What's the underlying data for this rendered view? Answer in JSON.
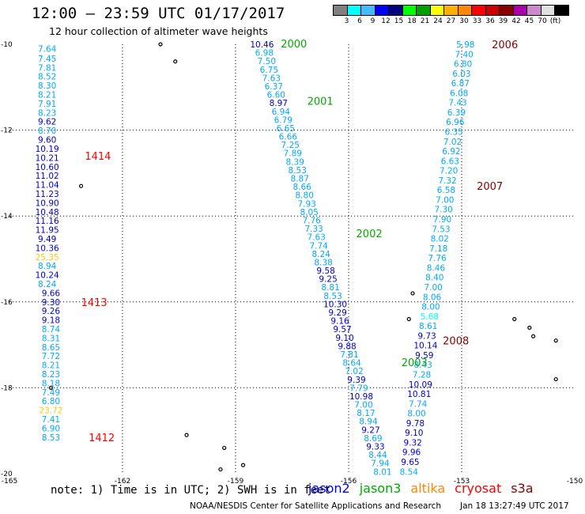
{
  "header": {
    "title": "12:00 – 23:59 UTC 01/17/2017",
    "subtitle": "12 hour collection of altimeter wave heights"
  },
  "legend": {
    "colors": [
      "#808080",
      "#00ffff",
      "#44bbff",
      "#0000ff",
      "#000080",
      "#00ff00",
      "#00a000",
      "#ffff00",
      "#ffb000",
      "#ff8800",
      "#ff0000",
      "#cc0000",
      "#880000",
      "#aa00aa",
      "#cc88cc",
      "#e0e0e0",
      "#000000"
    ],
    "labels": [
      "3",
      "6",
      "9",
      "12",
      "15",
      "18",
      "21",
      "24",
      "27",
      "30",
      "33",
      "36",
      "39",
      "42",
      "45",
      "70",
      "(ft)"
    ]
  },
  "axes": {
    "x_ticks": [
      "-165",
      "-162",
      "-159",
      "-156",
      "-153",
      "-150"
    ],
    "y_ticks": [
      "-10",
      "-12",
      "-14",
      "-16",
      "-18",
      "-20"
    ]
  },
  "tracks": [
    {
      "satellite": "jason2",
      "color": "#0000cc",
      "points": [
        {
          "lon": -164.0,
          "lat": -10.1,
          "v": "7.64",
          "c": "#00aaff"
        },
        {
          "lon": -164.0,
          "lat": -10.33,
          "v": "7.45",
          "c": "#00aaff"
        },
        {
          "lon": -164.0,
          "lat": -10.54,
          "v": "7.81",
          "c": "#00aaff"
        },
        {
          "lon": -164.0,
          "lat": -10.75,
          "v": "8.52",
          "c": "#00aaff"
        },
        {
          "lon": -164.0,
          "lat": -10.96,
          "v": "8.30",
          "c": "#00aaff"
        },
        {
          "lon": -164.0,
          "lat": -11.17,
          "v": "8.21",
          "c": "#00aaff"
        },
        {
          "lon": -164.0,
          "lat": -11.38,
          "v": "7.91",
          "c": "#00aaff"
        },
        {
          "lon": -164.0,
          "lat": -11.59,
          "v": "8.23",
          "c": "#00aaff"
        },
        {
          "lon": -164.0,
          "lat": -11.8,
          "v": "9.62",
          "c": "#0000cc"
        },
        {
          "lon": -164.0,
          "lat": -12.01,
          "v": "8.70",
          "c": "#00aaff"
        },
        {
          "lon": -164.0,
          "lat": -12.22,
          "v": "9.60",
          "c": "#0000cc"
        },
        {
          "lon": -164.0,
          "lat": -12.43,
          "v": "10.19",
          "c": "#0000cc"
        },
        {
          "lon": -164.0,
          "lat": -12.64,
          "v": "10.21",
          "c": "#0000cc"
        },
        {
          "lon": -164.0,
          "lat": -12.85,
          "v": "10.60",
          "c": "#0000cc"
        },
        {
          "lon": -164.0,
          "lat": -13.06,
          "v": "11.02",
          "c": "#0000cc"
        },
        {
          "lon": -164.0,
          "lat": -13.27,
          "v": "11.04",
          "c": "#0000cc"
        },
        {
          "lon": -164.0,
          "lat": -13.48,
          "v": "11.23",
          "c": "#0000cc"
        },
        {
          "lon": -164.0,
          "lat": -13.69,
          "v": "10.90",
          "c": "#0000cc"
        },
        {
          "lon": -164.0,
          "lat": -13.9,
          "v": "10.48",
          "c": "#0000cc"
        },
        {
          "lon": -164.0,
          "lat": -14.11,
          "v": "11.16",
          "c": "#0000cc"
        },
        {
          "lon": -164.0,
          "lat": -14.32,
          "v": "11.95",
          "c": "#0000cc"
        },
        {
          "lon": -164.0,
          "lat": -14.53,
          "v": "9.49",
          "c": "#0000cc"
        },
        {
          "lon": -164.0,
          "lat": -14.74,
          "v": "10.36",
          "c": "#0000cc"
        },
        {
          "lon": -164.0,
          "lat": -14.95,
          "v": "25.35",
          "c": "#ffcc00"
        },
        {
          "lon": -164.0,
          "lat": -15.16,
          "v": "8.94",
          "c": "#00aaff"
        },
        {
          "lon": -164.0,
          "lat": -15.37,
          "v": "10.24",
          "c": "#0000cc"
        },
        {
          "lon": -164.0,
          "lat": -15.58,
          "v": "8.24",
          "c": "#00aaff"
        },
        {
          "lon": -163.9,
          "lat": -15.79,
          "v": "9.66",
          "c": "#0000cc"
        },
        {
          "lon": -163.9,
          "lat": -16.0,
          "v": "9.30",
          "c": "#0000cc"
        },
        {
          "lon": -163.9,
          "lat": -16.21,
          "v": "9.26",
          "c": "#0000cc"
        },
        {
          "lon": -163.9,
          "lat": -16.42,
          "v": "9.18",
          "c": "#0000cc"
        },
        {
          "lon": -163.9,
          "lat": -16.63,
          "v": "8.74",
          "c": "#00aaff"
        },
        {
          "lon": -163.9,
          "lat": -16.84,
          "v": "8.31",
          "c": "#00aaff"
        },
        {
          "lon": -163.9,
          "lat": -17.05,
          "v": "8.65",
          "c": "#00aaff"
        },
        {
          "lon": -163.9,
          "lat": -17.26,
          "v": "7.72",
          "c": "#00aaff"
        },
        {
          "lon": -163.9,
          "lat": -17.47,
          "v": "8.21",
          "c": "#00aaff"
        },
        {
          "lon": -163.9,
          "lat": -17.68,
          "v": "8.23",
          "c": "#00aaff"
        },
        {
          "lon": -163.9,
          "lat": -17.89,
          "v": "8.18",
          "c": "#00aaff"
        },
        {
          "lon": -163.9,
          "lat": -18.1,
          "v": "7.49",
          "c": "#00aaff"
        },
        {
          "lon": -163.9,
          "lat": -18.31,
          "v": "6.80",
          "c": "#00aaff"
        },
        {
          "lon": -163.9,
          "lat": -18.52,
          "v": "23.72",
          "c": "#ffcc00"
        },
        {
          "lon": -163.9,
          "lat": -18.73,
          "v": "7.41",
          "c": "#00aaff"
        },
        {
          "lon": -163.9,
          "lat": -18.94,
          "v": "6.90",
          "c": "#00aaff"
        },
        {
          "lon": -163.9,
          "lat": -19.15,
          "v": "8.53",
          "c": "#00aaff"
        }
      ]
    }
  ],
  "time_labels": [
    {
      "lon": -163.0,
      "lat": -12.6,
      "text": "1414",
      "color": "#ff0000"
    },
    {
      "lon": -163.1,
      "lat": -16.0,
      "text": "1413",
      "color": "#ff0000"
    },
    {
      "lon": -162.9,
      "lat": -19.15,
      "text": "1412",
      "color": "#ff0000"
    },
    {
      "lon": -157.8,
      "lat": -9.98,
      "text": "2000",
      "color": "#00aa00"
    },
    {
      "lon": -157.1,
      "lat": -11.32,
      "text": "2001",
      "color": "#00aa00"
    },
    {
      "lon": -155.8,
      "lat": -14.4,
      "text": "2002",
      "color": "#00aa00"
    },
    {
      "lon": -154.6,
      "lat": -17.4,
      "text": "2003",
      "color": "#00aa00"
    },
    {
      "lon": -152.2,
      "lat": -10.0,
      "text": "2006",
      "color": "#880000"
    },
    {
      "lon": -152.6,
      "lat": -13.3,
      "text": "2007",
      "color": "#880000"
    },
    {
      "lon": -153.5,
      "lat": -16.9,
      "text": "2008",
      "color": "#880000"
    }
  ],
  "jason3_track_a": {
    "values": [
      "10.46",
      "6.98",
      "7.50",
      "6.75",
      "7.63",
      "6.37",
      "6.60",
      "8.97",
      "6.94",
      "6.79",
      "6.65",
      "6.66",
      "7.25",
      "7.89",
      "8.39",
      "8.53",
      "8.87",
      "8.66",
      "8.80",
      "7.93",
      "8.05",
      "7.76",
      "7.33",
      "7.63",
      "7.74",
      "8.24",
      "8.38",
      "9.58",
      "9.25",
      "8.81",
      "8.53",
      "10.30",
      "9.29",
      "9.16",
      "9.57",
      "9.10",
      "9.88",
      "7.81",
      "8.64",
      "7.02",
      "9.39",
      "7.79",
      "10.98",
      "7.00",
      "8.17",
      "8.94",
      "9.27",
      "8.69",
      "9.33",
      "8.44",
      "7.94",
      "8.01"
    ],
    "colors": [
      "#0000cc",
      "#00aaff",
      "#00aaff",
      "#00aaff",
      "#00aaff",
      "#00aaff",
      "#00aaff",
      "#0000cc",
      "#00aaff",
      "#00aaff",
      "#00aaff",
      "#00aaff",
      "#00aaff",
      "#00aaff",
      "#00aaff",
      "#00aaff",
      "#00aaff",
      "#00aaff",
      "#00aaff",
      "#00aaff",
      "#00aaff",
      "#00aaff",
      "#00aaff",
      "#00aaff",
      "#00aaff",
      "#00aaff",
      "#00aaff",
      "#0000cc",
      "#0000cc",
      "#00aaff",
      "#00aaff",
      "#0000cc",
      "#0000cc",
      "#0000cc",
      "#0000cc",
      "#0000cc",
      "#0000cc",
      "#00aaff",
      "#00aaff",
      "#00aaff",
      "#0000cc",
      "#00aaff",
      "#0000cc",
      "#00aaff",
      "#00aaff",
      "#00aaff",
      "#0000cc",
      "#00aaff",
      "#0000cc",
      "#00aaff",
      "#00aaff",
      "#00aaff"
    ],
    "lon_start": -158.3,
    "lat_start": -10.0,
    "lon_end": -155.1,
    "lat_end": -19.95
  },
  "cryosat_track": {
    "values": [
      "5.98",
      "7.40",
      "6.80",
      "6.03",
      "6.87",
      "6.08",
      "7.43",
      "6.39",
      "6.96",
      "6.35",
      "7.02",
      "6.92",
      "6.63",
      "7.20",
      "7.32",
      "6.58",
      "7.00",
      "7.30",
      "7.90",
      "7.53",
      "8.02",
      "7.18",
      "7.76",
      "8.46",
      "8.40",
      "7.00",
      "8.06",
      "8.00",
      "5.68",
      "8.61",
      "9.73",
      "10.14",
      "9.59",
      "8.43",
      "7.28",
      "10.09",
      "10.81",
      "7.74",
      "8.00",
      "9.78",
      "9.10",
      "9.32",
      "9.96",
      "9.65",
      "8.54"
    ],
    "colors": [
      "#00aaff",
      "#00aaff",
      "#00aaff",
      "#00aaff",
      "#00aaff",
      "#00aaff",
      "#00aaff",
      "#00aaff",
      "#00aaff",
      "#00aaff",
      "#00aaff",
      "#00aaff",
      "#00aaff",
      "#00aaff",
      "#00aaff",
      "#00aaff",
      "#00aaff",
      "#00aaff",
      "#00aaff",
      "#00aaff",
      "#00aaff",
      "#00aaff",
      "#00aaff",
      "#00aaff",
      "#00aaff",
      "#00aaff",
      "#00aaff",
      "#00aaff",
      "#00ffff",
      "#00aaff",
      "#0000cc",
      "#0000cc",
      "#0000cc",
      "#00aaff",
      "#00aaff",
      "#0000cc",
      "#0000cc",
      "#00aaff",
      "#00aaff",
      "#0000cc",
      "#0000cc",
      "#0000cc",
      "#0000cc",
      "#0000cc",
      "#00aaff"
    ],
    "lon_start": -152.9,
    "lat_start": -10.0,
    "lon_end": -154.4,
    "lat_end": -19.95
  },
  "footer": {
    "note": "note: 1) Time is in UTC; 2) SWH is in feet",
    "satellites": [
      {
        "name": "jason2",
        "color": "#0000ff"
      },
      {
        "name": "jason3",
        "color": "#00aa00"
      },
      {
        "name": "altika",
        "color": "#ff8800"
      },
      {
        "name": "cryosat",
        "color": "#ff0000"
      },
      {
        "name": "s3a",
        "color": "#880000"
      }
    ],
    "credit": "NOAA/NESDIS Center for Satellite Applications and Research",
    "timestamp": "Jan 18 13:27:49 UTC 2017"
  }
}
